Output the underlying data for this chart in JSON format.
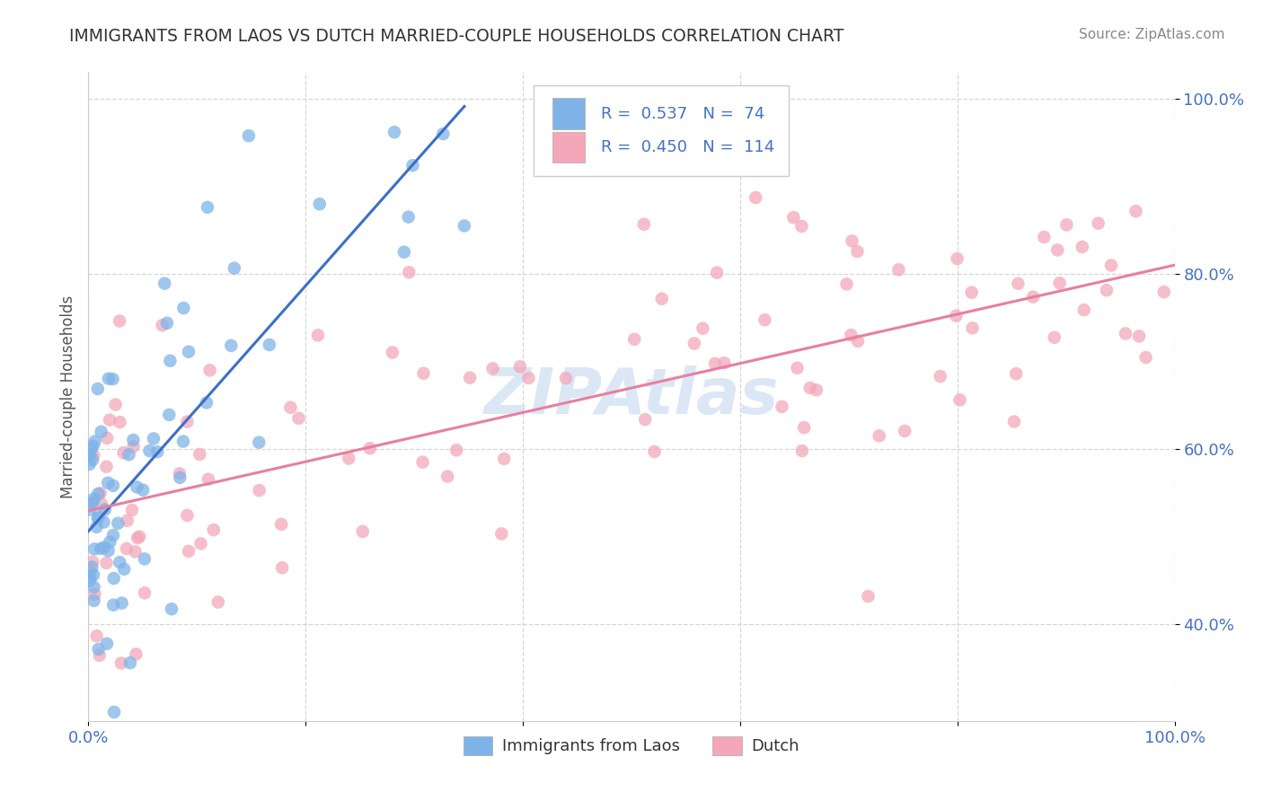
{
  "title": "IMMIGRANTS FROM LAOS VS DUTCH MARRIED-COUPLE HOUSEHOLDS CORRELATION CHART",
  "source": "Source: ZipAtlas.com",
  "ylabel": "Married-couple Households",
  "xlim": [
    0.0,
    1.0
  ],
  "ylim": [
    0.29,
    1.03
  ],
  "x_tick_positions": [
    0.0,
    0.2,
    0.4,
    0.6,
    0.8,
    1.0
  ],
  "x_tick_labels": [
    "0.0%",
    "",
    "",
    "",
    "",
    "100.0%"
  ],
  "y_tick_positions": [
    0.4,
    0.6,
    0.8,
    1.0
  ],
  "y_tick_labels": [
    "40.0%",
    "60.0%",
    "80.0%",
    "100.0%"
  ],
  "legend1_label": "Immigrants from Laos",
  "legend2_label": "Dutch",
  "r1": 0.537,
  "n1": 74,
  "r2": 0.45,
  "n2": 114,
  "color_blue": "#7FB3E8",
  "color_pink": "#F4A7B9",
  "color_blue_line": "#3B6FC9",
  "color_pink_line": "#E87FA0",
  "color_axis_label": "#4472C4",
  "background_color": "#FFFFFF",
  "grid_color": "#CCCCCC",
  "title_color": "#333333",
  "watermark_color": "#C5D8F0",
  "source_color": "#888888"
}
